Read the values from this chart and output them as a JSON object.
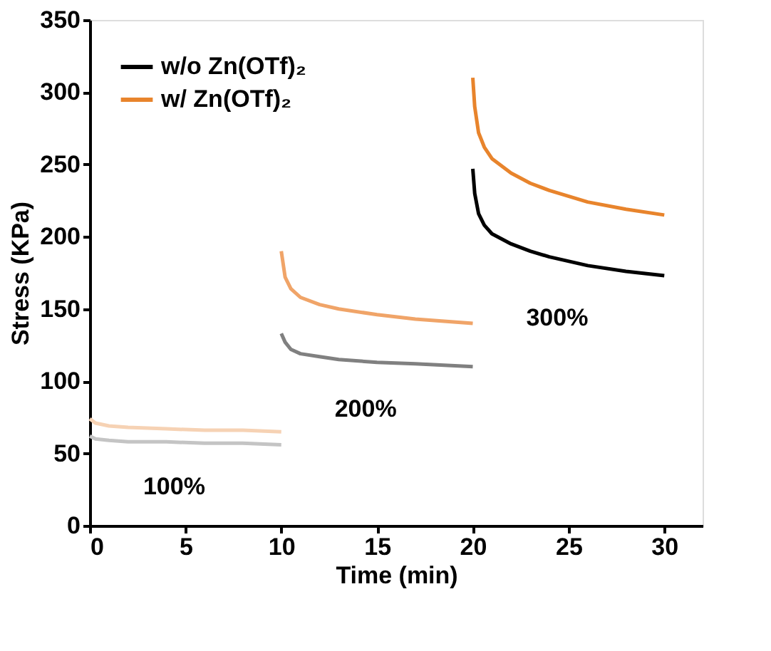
{
  "chart_data": {
    "type": "line",
    "xlabel": "Time (min)",
    "ylabel": "Stress (KPa)",
    "xlim": [
      0,
      32
    ],
    "xticks": [
      0,
      5,
      10,
      15,
      20,
      25,
      30
    ],
    "ylim": [
      0,
      350
    ],
    "yticks": [
      0,
      50,
      100,
      150,
      200,
      250,
      300,
      350
    ],
    "grid": false,
    "legend": "top left",
    "line_style": "solid",
    "marker": "none",
    "series": [
      {
        "color": "#c4c4c4",
        "x": [
          0,
          0.3,
          1,
          2,
          4,
          6,
          8,
          10
        ],
        "values": [
          62,
          60,
          59,
          58,
          58,
          57,
          57,
          56
        ]
      },
      {
        "color": "#f6d2b4",
        "x": [
          0,
          0.3,
          1,
          2,
          4,
          6,
          8,
          10
        ],
        "values": [
          74,
          71,
          69,
          68,
          67,
          66,
          66,
          65
        ]
      },
      {
        "color": "#808080",
        "x": [
          10,
          10.2,
          10.5,
          11,
          12,
          13,
          15,
          17,
          20
        ],
        "values": [
          133,
          127,
          122,
          119,
          117,
          115,
          113,
          112,
          110
        ]
      },
      {
        "color": "#f0a468",
        "x": [
          10,
          10.2,
          10.5,
          11,
          12,
          13,
          15,
          17,
          20
        ],
        "values": [
          190,
          172,
          164,
          158,
          153,
          150,
          146,
          143,
          140
        ]
      },
      {
        "name": "w/o Zn(OTf)₂",
        "color": "#000000",
        "x": [
          20,
          20.1,
          20.3,
          20.6,
          21,
          22,
          23,
          24,
          26,
          28,
          30
        ],
        "values": [
          247,
          230,
          216,
          208,
          202,
          195,
          190,
          186,
          180,
          176,
          173
        ]
      },
      {
        "name": "w/ Zn(OTf)₂",
        "color": "#e8842c",
        "x": [
          20,
          20.1,
          20.3,
          20.6,
          21,
          22,
          23,
          24,
          26,
          28,
          30
        ],
        "values": [
          310,
          290,
          272,
          262,
          254,
          244,
          237,
          232,
          224,
          219,
          215
        ]
      }
    ],
    "annotations": [
      "100%",
      "200%",
      "300%"
    ]
  }
}
